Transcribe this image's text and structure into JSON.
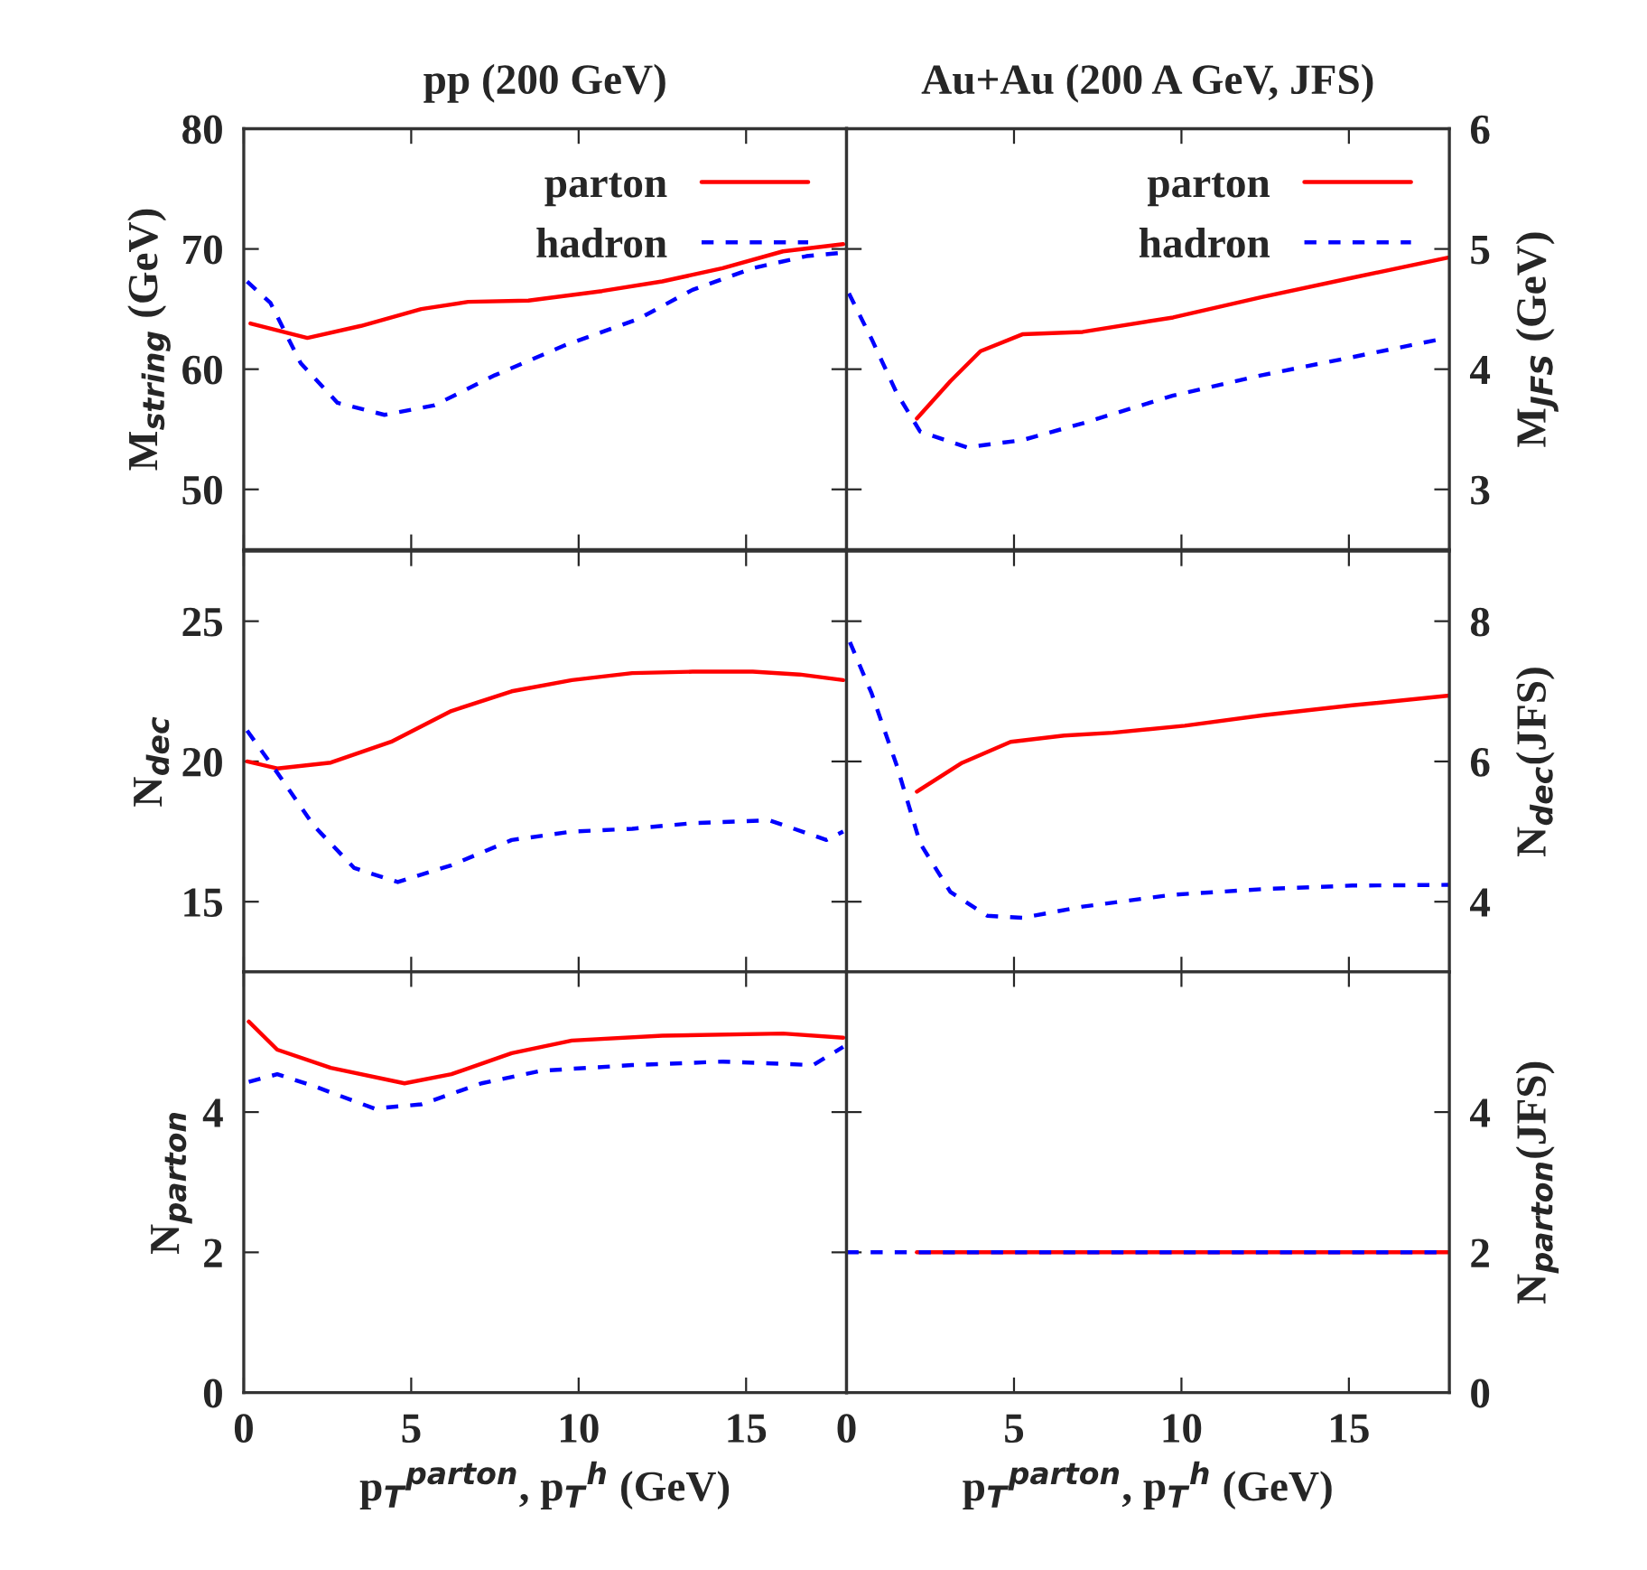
{
  "chart_data": [
    {
      "type": "line",
      "title": "pp (200 GeV)",
      "ylabel": "M$_{string}$ (GeV)",
      "xlim": [
        0,
        18
      ],
      "xticks": [
        0,
        5,
        10,
        15
      ],
      "ylim": [
        45,
        80
      ],
      "yticks": [
        50,
        60,
        70,
        80
      ],
      "tick_labels": "y",
      "legend": "top right",
      "series": [
        {
          "name": "parton",
          "color": "#ff0000",
          "line_style": "solid",
          "x": [
            0.2,
            1.9,
            3.5,
            5.3,
            6.7,
            8.5,
            10.7,
            12.5,
            14.3,
            16.1,
            17.9
          ],
          "values": [
            63.8,
            62.6,
            63.6,
            65,
            65.6,
            65.7,
            66.5,
            67.3,
            68.4,
            69.8,
            70.4
          ]
        },
        {
          "name": "hadron",
          "color": "#0000ff",
          "line_style": "dashed",
          "x": [
            0.1,
            0.8,
            1.7,
            2.8,
            4.2,
            5.7,
            7.5,
            9.6,
            11.8,
            13.4,
            15.2,
            16.8,
            17.9
          ],
          "values": [
            67.3,
            65.5,
            60.5,
            57.2,
            56.2,
            57,
            59.5,
            62,
            64.2,
            66.6,
            68.4,
            69.4,
            69.7
          ]
        }
      ]
    },
    {
      "type": "line",
      "title": "Au+Au (200 A GeV, JFS)",
      "ylabel": "M$_{JFS}$ (GeV)",
      "xlim": [
        0,
        18
      ],
      "xticks": [
        0,
        5,
        10,
        15
      ],
      "ylim": [
        2.5,
        6
      ],
      "yticks": [
        3,
        4,
        5,
        6
      ],
      "tick_labels": "y",
      "legend": "top right",
      "series": [
        {
          "name": "parton",
          "color": "#ff0000",
          "line_style": "solid",
          "x": [
            2.1,
            3.1,
            4.0,
            5.25,
            7.05,
            9.75,
            12.4,
            15.1,
            18
          ],
          "values": [
            3.59,
            3.9,
            4.15,
            4.29,
            4.31,
            4.43,
            4.6,
            4.76,
            4.93
          ]
        },
        {
          "name": "hadron",
          "color": "#0000ff",
          "line_style": "dashed",
          "x": [
            0.07,
            0.75,
            1.5,
            2.2,
            3.6,
            5.25,
            7.05,
            9.75,
            12.4,
            15.1,
            17.75
          ],
          "values": [
            4.63,
            4.25,
            3.8,
            3.48,
            3.35,
            3.41,
            3.55,
            3.78,
            3.95,
            4.1,
            4.25
          ]
        }
      ]
    },
    {
      "type": "line",
      "ylabel": "N$_{dec}$",
      "xlim": [
        0,
        18
      ],
      "xticks": [
        0,
        5,
        10,
        15
      ],
      "ylim": [
        12.5,
        27.5
      ],
      "yticks": [
        15,
        20,
        25
      ],
      "tick_labels": "y",
      "series": [
        {
          "color": "#ff0000",
          "line_style": "solid",
          "x": [
            0.1,
            1.0,
            2.6,
            4.4,
            6.2,
            8.0,
            9.8,
            11.6,
            13.4,
            15.2,
            16.6,
            17.9
          ],
          "values": [
            20.0,
            19.75,
            19.96,
            20.7,
            21.8,
            22.5,
            22.9,
            23.15,
            23.2,
            23.2,
            23.1,
            22.9
          ]
        },
        {
          "color": "#0000ff",
          "line_style": "dashed",
          "x": [
            0.1,
            1.0,
            2.1,
            3.3,
            4.6,
            6.2,
            8.0,
            9.8,
            11.6,
            13.4,
            15.7,
            17.4,
            17.9
          ],
          "values": [
            21.1,
            19.6,
            17.7,
            16.2,
            15.7,
            16.3,
            17.2,
            17.5,
            17.6,
            17.8,
            17.9,
            17.2,
            17.5
          ]
        }
      ]
    },
    {
      "type": "line",
      "ylabel": "N$_{dec}$(JFS)",
      "xlim": [
        0,
        18
      ],
      "xticks": [
        0,
        5,
        10,
        15
      ],
      "ylim": [
        3,
        9
      ],
      "yticks": [
        4,
        6,
        8
      ],
      "tick_labels": "y",
      "series": [
        {
          "color": "#ff0000",
          "line_style": "solid",
          "x": [
            2.1,
            3.45,
            4.9,
            6.5,
            7.95,
            10.1,
            12.45,
            15.1,
            18
          ],
          "values": [
            5.57,
            5.98,
            6.28,
            6.37,
            6.41,
            6.51,
            6.66,
            6.8,
            6.94
          ]
        },
        {
          "color": "#0000ff",
          "line_style": "dashed",
          "x": [
            0.1,
            0.75,
            1.5,
            2.2,
            3.1,
            4.2,
            5.25,
            7.05,
            9.75,
            12.45,
            15.1,
            18
          ],
          "values": [
            7.7,
            6.97,
            5.94,
            4.83,
            4.14,
            3.8,
            3.77,
            3.93,
            4.1,
            4.18,
            4.23,
            4.24
          ]
        }
      ]
    },
    {
      "type": "line",
      "xlabel": "p$_{T}$$^{parton}$, p$_{T}$$^{h}$ (GeV)",
      "ylabel": "N$_{parton}$",
      "xlim": [
        0,
        18
      ],
      "xticks": [
        0,
        5,
        10,
        15
      ],
      "ylim": [
        0,
        6
      ],
      "yticks": [
        0,
        2,
        4
      ],
      "series": [
        {
          "color": "#ff0000",
          "line_style": "solid",
          "x": [
            0.15,
            1.0,
            2.6,
            4.8,
            6.2,
            8.0,
            9.8,
            12.5,
            16.1,
            17.9
          ],
          "values": [
            5.29,
            4.89,
            4.63,
            4.41,
            4.54,
            4.84,
            5.02,
            5.09,
            5.12,
            5.06
          ]
        },
        {
          "color": "#0000ff",
          "line_style": "dashed",
          "x": [
            0.15,
            1.0,
            2.1,
            3.9,
            5.3,
            7.1,
            8.9,
            11.6,
            14.3,
            17.0,
            17.9
          ],
          "values": [
            4.43,
            4.54,
            4.37,
            4.05,
            4.11,
            4.41,
            4.59,
            4.67,
            4.72,
            4.67,
            4.93
          ]
        }
      ]
    },
    {
      "type": "line",
      "xlabel": "p$_{T}$$^{parton}$, p$_{T}$$^{h}$ (GeV)",
      "ylabel": "N$_{parton}$(JFS)",
      "xlim": [
        0,
        18
      ],
      "xticks": [
        0,
        5,
        10,
        15
      ],
      "ylim": [
        0,
        6
      ],
      "yticks": [
        0,
        2,
        4
      ],
      "series": [
        {
          "color": "#ff0000",
          "line_style": "solid",
          "x": [
            2.1,
            18
          ],
          "values": [
            2,
            2
          ]
        },
        {
          "color": "#0000ff",
          "line_style": "dashed",
          "x": [
            0,
            18
          ],
          "values": [
            2,
            2
          ]
        }
      ]
    }
  ]
}
